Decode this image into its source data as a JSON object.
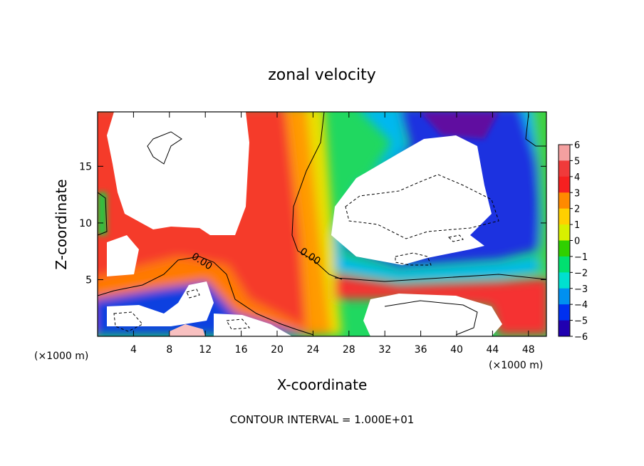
{
  "chart_data": {
    "type": "heatmap",
    "title": "zonal velocity",
    "xlabel": "X-coordinate",
    "ylabel": "Z-coordinate",
    "x_unit_label": "(×1000 m)",
    "x_unit_label_right": "(×1000 m)",
    "footer": "CONTOUR INTERVAL = 1.000E+01",
    "xlim": [
      0,
      50
    ],
    "ylim": [
      0,
      19.8
    ],
    "x_ticks": [
      4,
      8,
      12,
      16,
      20,
      24,
      28,
      32,
      36,
      40,
      44,
      48
    ],
    "y_ticks": [
      5,
      10,
      15
    ],
    "colorbar": {
      "levels": [
        6,
        5,
        4,
        3,
        2,
        1,
        0,
        -1,
        -2,
        -3,
        -4,
        -5,
        -6
      ],
      "level_labels": [
        "6",
        "5",
        "4",
        "3",
        "2",
        "1",
        "0",
        "−1",
        "−2",
        "−3",
        "−4",
        "−5",
        "−6"
      ],
      "colors": [
        "#f4a0a0",
        "#f03a3a",
        "#f52020",
        "#ff8a00",
        "#ffd000",
        "#d8f000",
        "#30d000",
        "#00e070",
        "#00e0d0",
        "#0090f0",
        "#0030f0",
        "#2000b0",
        "#7010a0"
      ]
    },
    "contour_labels": [
      {
        "text": "0.00",
        "x": 11,
        "z": 6.6,
        "angle": 35
      },
      {
        "text": "0.00",
        "x": 24.5,
        "z": 7.0,
        "angle": 33
      }
    ],
    "features": [
      {
        "kind": "saturated-positive",
        "note": "white region, values above colorbar range",
        "x": [
          1.2,
          18.5
        ],
        "z": [
          8.5,
          19.8
        ]
      },
      {
        "kind": "saturated-negative",
        "note": "white region, values below colorbar range",
        "x": [
          26,
          43
        ],
        "z": [
          6.5,
          17.5
        ]
      },
      {
        "kind": "saturated-positive",
        "x": [
          26,
          43
        ],
        "z": [
          0,
          3.8
        ]
      },
      {
        "kind": "saturated-negative",
        "x": [
          1.5,
          8
        ],
        "z": [
          0.5,
          2.8
        ]
      },
      {
        "kind": "saturated-positive",
        "x": [
          13,
          21
        ],
        "z": [
          0,
          2.2
        ]
      }
    ]
  }
}
